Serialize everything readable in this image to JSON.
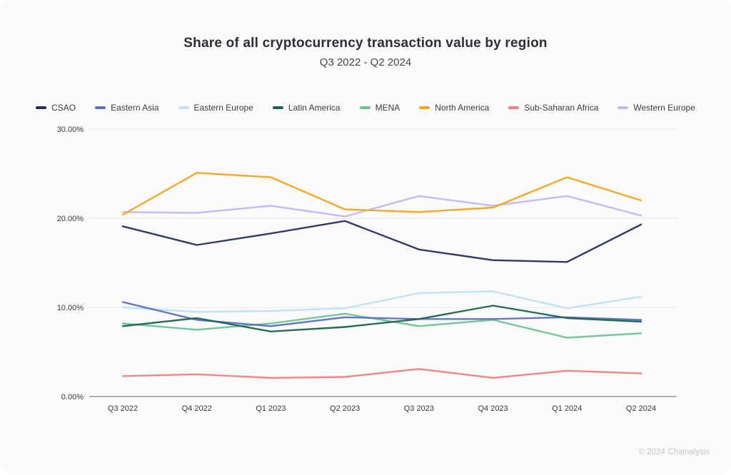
{
  "header": {
    "title": "Share of all cryptocurrency transaction value by region",
    "subtitle": "Q3 2022 - Q2 2024"
  },
  "footer": {
    "credit": "© 2024 Chainalysis"
  },
  "chart_data": {
    "type": "line",
    "title": "Share of all cryptocurrency transaction value by region",
    "subtitle": "Q3 2022 - Q2 2024",
    "categories": [
      "Q3 2022",
      "Q4 2022",
      "Q1 2023",
      "Q2 2023",
      "Q3 2023",
      "Q4 2023",
      "Q1 2024",
      "Q2 2024"
    ],
    "unit": "%",
    "ylim": [
      0,
      30
    ],
    "y_ticks": [
      0,
      10,
      20,
      30
    ],
    "y_tick_labels": [
      "0.00%",
      "10.00%",
      "20.00%",
      "30.00%"
    ],
    "grid": "horizontal",
    "legend_position": "top",
    "series": [
      {
        "name": "CSAO",
        "color": "#262e5e",
        "values": [
          19.1,
          17.0,
          18.3,
          19.7,
          16.5,
          15.3,
          15.1,
          19.3
        ]
      },
      {
        "name": "Eastern Asia",
        "color": "#5b70c2",
        "values": [
          10.6,
          8.6,
          7.9,
          8.9,
          8.7,
          8.7,
          8.9,
          8.6
        ]
      },
      {
        "name": "Eastern Europe",
        "color": "#bfe2f4",
        "values": [
          10.0,
          9.5,
          9.6,
          9.9,
          11.6,
          11.8,
          9.9,
          11.2
        ]
      },
      {
        "name": "Latin America",
        "color": "#1e6351",
        "values": [
          7.9,
          8.8,
          7.3,
          7.8,
          8.7,
          10.2,
          8.8,
          8.4
        ]
      },
      {
        "name": "MENA",
        "color": "#6ec392",
        "values": [
          8.2,
          7.5,
          8.2,
          9.3,
          7.9,
          8.6,
          6.6,
          7.1
        ]
      },
      {
        "name": "North America",
        "color": "#f8a41f",
        "values": [
          20.4,
          25.1,
          24.6,
          21.0,
          20.7,
          21.2,
          24.6,
          22.0
        ]
      },
      {
        "name": "Sub-Saharan Africa",
        "color": "#f0807e",
        "values": [
          2.3,
          2.5,
          2.1,
          2.2,
          3.1,
          2.1,
          2.9,
          2.6
        ]
      },
      {
        "name": "Western Europe",
        "color": "#c3b7f7",
        "values": [
          20.7,
          20.6,
          21.4,
          20.2,
          22.5,
          21.4,
          22.5,
          20.3
        ]
      }
    ]
  }
}
